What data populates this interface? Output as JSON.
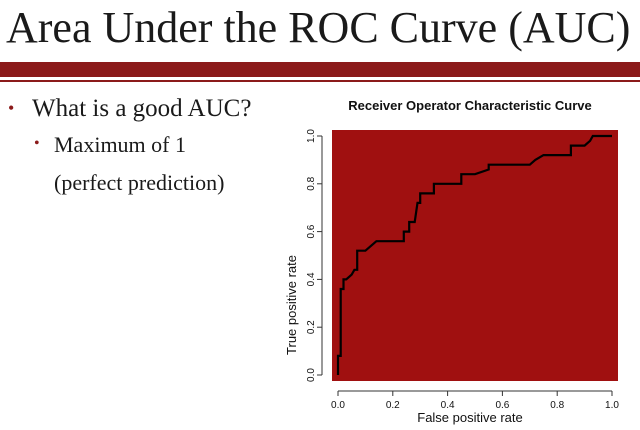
{
  "slide": {
    "title": "Area Under the ROC Curve (AUC)",
    "bullet_1": "What is a good AUC?",
    "bullet_2": "Maximum of 1",
    "bullet_2_cont": "(perfect prediction)"
  },
  "colors": {
    "accent": "#8b1a1a",
    "plot_fill": "#a01010",
    "curve": "#000000"
  },
  "chart_data": {
    "type": "line",
    "title": "Receiver Operator Characteristic Curve",
    "xlabel": "False positive rate",
    "ylabel": "True positive rate",
    "xlim": [
      0,
      1
    ],
    "ylim": [
      0,
      1
    ],
    "x_ticks": [
      "0.0",
      "0.2",
      "0.4",
      "0.6",
      "0.8",
      "1.0"
    ],
    "y_ticks": [
      "0.0",
      "0.2",
      "0.4",
      "0.6",
      "0.8",
      "1.0"
    ],
    "grid": false,
    "legend": "none",
    "fill_below_curve": true,
    "series": [
      {
        "x": [
          0,
          0,
          0.01,
          0.01,
          0.02,
          0.02,
          0.03,
          0.03,
          0.05,
          0.06,
          0.07,
          0.07,
          0.1,
          0.12,
          0.14,
          0.22,
          0.24,
          0.24,
          0.26,
          0.26,
          0.28,
          0.29,
          0.3,
          0.3,
          0.33,
          0.35,
          0.35,
          0.38,
          0.4,
          0.4,
          0.45,
          0.45,
          0.5,
          0.55,
          0.55,
          0.6,
          0.65,
          0.7,
          0.72,
          0.75,
          0.8,
          0.85,
          0.85,
          0.9,
          0.92,
          0.93,
          1.0
        ],
        "y": [
          0,
          0.08,
          0.08,
          0.36,
          0.36,
          0.4,
          0.4,
          0.4,
          0.42,
          0.44,
          0.44,
          0.52,
          0.52,
          0.54,
          0.56,
          0.56,
          0.56,
          0.6,
          0.6,
          0.64,
          0.64,
          0.72,
          0.72,
          0.76,
          0.76,
          0.76,
          0.8,
          0.8,
          0.8,
          0.8,
          0.8,
          0.84,
          0.84,
          0.86,
          0.88,
          0.88,
          0.88,
          0.88,
          0.9,
          0.92,
          0.92,
          0.92,
          0.96,
          0.96,
          0.98,
          1.0,
          1.0
        ]
      }
    ]
  }
}
